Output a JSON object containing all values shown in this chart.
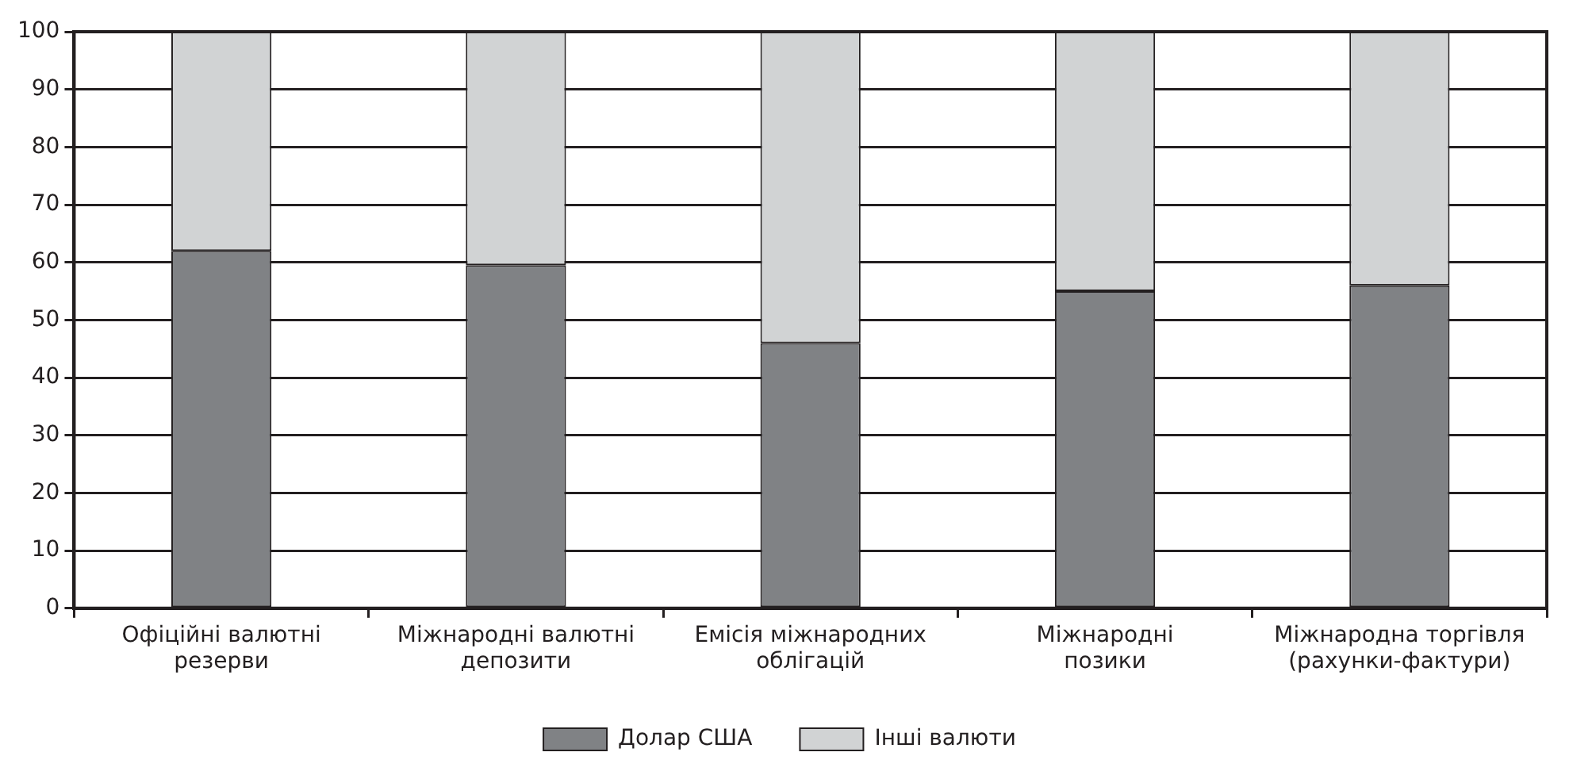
{
  "chart_data": {
    "type": "bar",
    "stacked": true,
    "categories": [
      "Офіційні валютні резерви",
      "Міжнародні валютні депозити",
      "Емісія міжнародних облігацій",
      "Міжнародні позики",
      "Міжнародна торгівля (рахунки-фактури)"
    ],
    "series": [
      {
        "name": "Долар США",
        "color": "#808285",
        "values": [
          62,
          59.5,
          46,
          55,
          56
        ]
      },
      {
        "name": "Інші валюти",
        "color": "#d1d3d4",
        "values": [
          38,
          40.5,
          54,
          45,
          44
        ]
      }
    ],
    "ylim": [
      0,
      100
    ],
    "yticks": [
      0,
      10,
      20,
      30,
      40,
      50,
      60,
      70,
      80,
      90,
      100
    ],
    "grid": "y",
    "legend": "bottom"
  }
}
